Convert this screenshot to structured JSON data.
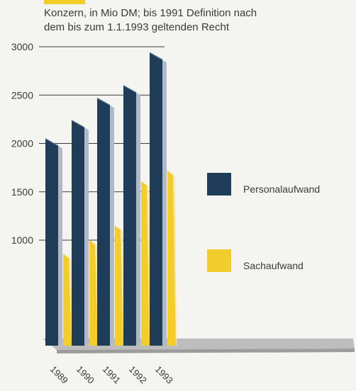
{
  "colors": {
    "background": "#f4f4f1",
    "accent": "#f2cd2b",
    "personal": "#1f3c58",
    "personal_side": "#b2b9c6",
    "personal_top": "#6c7d91",
    "sach": "#f2cd2b",
    "sach_side": "#efe7bd",
    "sach_top": "#f7e47a",
    "base": "#bdbdbd",
    "grid": "#3a3a3a"
  },
  "chart_data": {
    "type": "bar",
    "subtitle_lines": [
      "Konzern, in Mio DM; bis 1991 Definition nach",
      "dem bis zum 1.1.1993 geltenden Recht"
    ],
    "categories": [
      "1989",
      "1990",
      "1991",
      "1992",
      "1993"
    ],
    "series": [
      {
        "name": "Personalaufwand",
        "values": [
          2050,
          2240,
          2470,
          2600,
          2940
        ]
      },
      {
        "name": "Sachaufwand",
        "values": [
          860,
          1000,
          1150,
          1610,
          1720
        ]
      }
    ],
    "yticks": [
      1000,
      1500,
      2000,
      2500,
      3000
    ],
    "ylim": [
      0,
      3000
    ],
    "grid": true,
    "legend_position": "right"
  }
}
